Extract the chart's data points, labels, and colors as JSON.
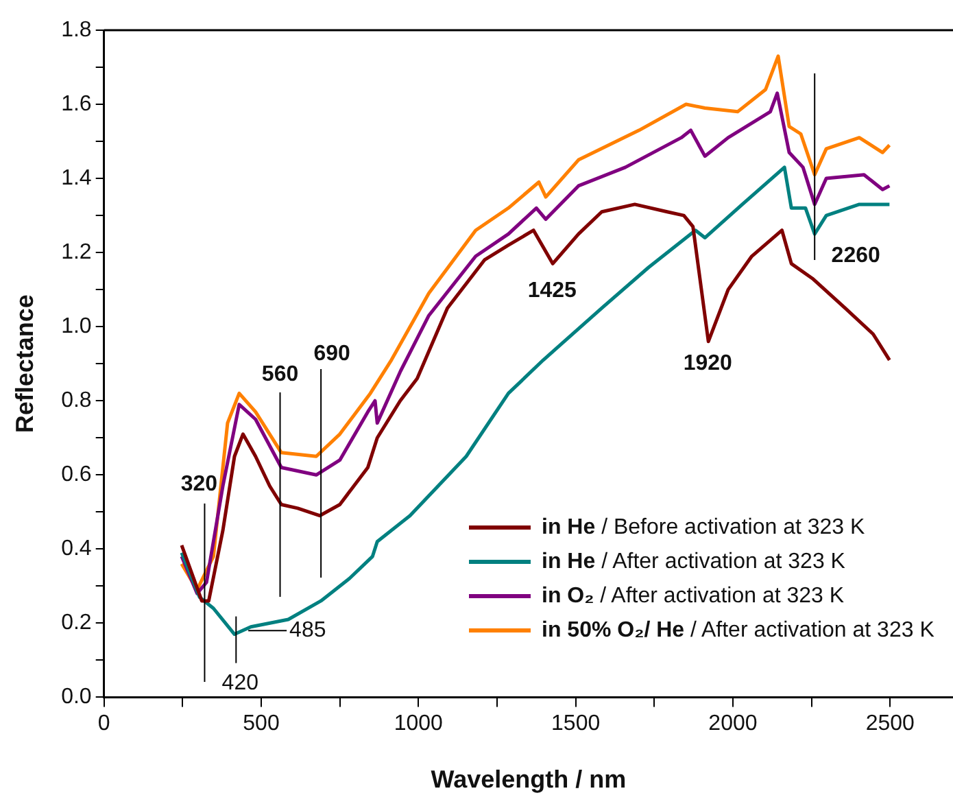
{
  "chart_data": {
    "type": "line",
    "xlabel": "Wavelength / nm",
    "ylabel": "Reflectance",
    "xlim": [
      0,
      2700
    ],
    "xticks": [
      0,
      {
        "value": 250,
        "label": null
      },
      500,
      {
        "value": 750,
        "label": null
      },
      1000,
      {
        "value": 1250,
        "label": null
      },
      1500,
      {
        "value": 1750,
        "label": null
      },
      2000,
      {
        "value": 2250,
        "label": null
      },
      2500
    ],
    "ylim": [
      0,
      1.8
    ],
    "yticks": [
      {
        "value": 0,
        "label": "0.0"
      },
      {
        "value": 0.1,
        "label": null
      },
      {
        "value": 0.2,
        "label": "0.2"
      },
      {
        "value": 0.3,
        "label": null
      },
      {
        "value": 0.4,
        "label": "0.4"
      },
      {
        "value": 0.5,
        "label": null
      },
      {
        "value": 0.6,
        "label": "0.6"
      },
      {
        "value": 0.7,
        "label": null
      },
      {
        "value": 0.8,
        "label": "0.8"
      },
      {
        "value": 0.9,
        "label": null
      },
      {
        "value": 1.0,
        "label": "1.0"
      },
      {
        "value": 1.1,
        "label": null
      },
      {
        "value": 1.2,
        "label": "1.2"
      },
      {
        "value": 1.3,
        "label": null
      },
      {
        "value": 1.4,
        "label": "1.4"
      },
      {
        "value": 1.5,
        "label": null
      },
      {
        "value": 1.6,
        "label": "1.6"
      },
      {
        "value": 1.7,
        "label": null
      },
      {
        "value": 1.8,
        "label": "1.8"
      }
    ],
    "grid": false,
    "legend": "bottom right",
    "marker": "none",
    "line_style": "solid",
    "series": [
      {
        "name": "in He / Before activation at 323 K",
        "color": "#800000",
        "x": [
          247,
          311,
          333,
          378,
          415,
          442,
          482,
          527,
          564,
          616,
          686,
          750,
          839,
          869,
          942,
          996,
          1092,
          1210,
          1286,
          1366,
          1427,
          1509,
          1583,
          1688,
          1791,
          1844,
          1873,
          1922,
          1985,
          2060,
          2156,
          2186,
          2253,
          2357,
          2446,
          2498
        ],
        "values": [
          0.41,
          0.26,
          0.26,
          0.45,
          0.65,
          0.71,
          0.65,
          0.57,
          0.52,
          0.51,
          0.49,
          0.52,
          0.62,
          0.7,
          0.8,
          0.86,
          1.05,
          1.18,
          1.22,
          1.26,
          1.17,
          1.25,
          1.31,
          1.33,
          1.31,
          1.3,
          1.27,
          0.96,
          1.1,
          1.19,
          1.26,
          1.17,
          1.13,
          1.05,
          0.98,
          0.91
        ]
      },
      {
        "name": "in He / After activation at 323 K",
        "color": "#008080",
        "x": [
          247,
          304,
          348,
          415,
          467,
          586,
          690,
          780,
          854,
          869,
          973,
          1152,
          1286,
          1397,
          1583,
          1732,
          1881,
          1911,
          2030,
          2164,
          2186,
          2231,
          2260,
          2297,
          2402,
          2498
        ],
        "values": [
          0.39,
          0.27,
          0.24,
          0.17,
          0.19,
          0.21,
          0.26,
          0.32,
          0.38,
          0.42,
          0.49,
          0.65,
          0.82,
          0.91,
          1.05,
          1.16,
          1.26,
          1.24,
          1.33,
          1.43,
          1.32,
          1.32,
          1.25,
          1.3,
          1.33,
          1.33
        ]
      },
      {
        "name": "in O₂ / After activation at 323 K",
        "color": "#800080",
        "x": [
          247,
          296,
          326,
          378,
          430,
          482,
          564,
          675,
          750,
          839,
          862,
          869,
          943,
          1033,
          1182,
          1286,
          1375,
          1405,
          1509,
          1658,
          1836,
          1866,
          1911,
          1985,
          2119,
          2141,
          2179,
          2223,
          2260,
          2297,
          2417,
          2476,
          2498
        ],
        "values": [
          0.38,
          0.28,
          0.31,
          0.57,
          0.79,
          0.75,
          0.62,
          0.6,
          0.64,
          0.77,
          0.8,
          0.74,
          0.88,
          1.03,
          1.19,
          1.25,
          1.32,
          1.29,
          1.38,
          1.43,
          1.51,
          1.53,
          1.46,
          1.51,
          1.58,
          1.63,
          1.47,
          1.43,
          1.33,
          1.4,
          1.41,
          1.37,
          1.38
        ]
      },
      {
        "name": "in 50% O₂/ He / After activation at 323 K",
        "color": "#ff8000",
        "x": [
          247,
          296,
          348,
          393,
          430,
          482,
          564,
          675,
          750,
          847,
          914,
          1033,
          1182,
          1286,
          1383,
          1405,
          1509,
          1702,
          1851,
          1911,
          2015,
          2104,
          2144,
          2179,
          2216,
          2260,
          2297,
          2402,
          2476,
          2498
        ],
        "values": [
          0.36,
          0.29,
          0.38,
          0.74,
          0.82,
          0.77,
          0.66,
          0.65,
          0.71,
          0.82,
          0.91,
          1.09,
          1.26,
          1.32,
          1.39,
          1.35,
          1.45,
          1.53,
          1.6,
          1.59,
          1.58,
          1.64,
          1.73,
          1.54,
          1.52,
          1.41,
          1.48,
          1.51,
          1.47,
          1.49
        ]
      }
    ],
    "annotations": [
      {
        "text": "320",
        "x": 320
      },
      {
        "text": "420",
        "x": 420,
        "y": 0.17
      },
      {
        "text": "485",
        "x": 485,
        "y": 0.18
      },
      {
        "text": "560",
        "x": 560
      },
      {
        "text": "690",
        "x": 690
      },
      {
        "text": "1425",
        "x": 1425,
        "y": 1.17
      },
      {
        "text": "1920",
        "x": 1920,
        "y": 0.96
      },
      {
        "text": "2260",
        "x": 2260,
        "y": 1.25
      }
    ]
  }
}
